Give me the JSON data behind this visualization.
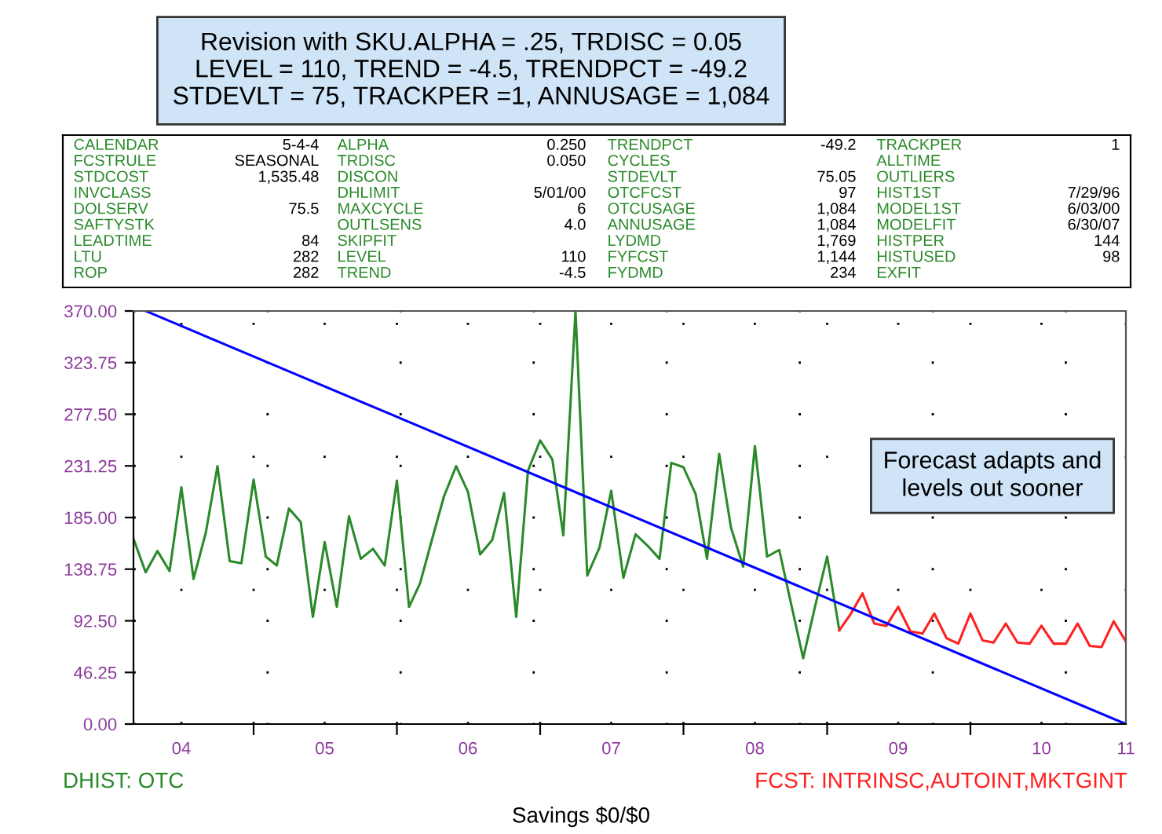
{
  "chart_data": [
    {
      "type": "other",
      "annotations": [
        "CALENDAR 5-4-4",
        "FCSTRULE SEASONAL",
        "STDCOST 1,535.48",
        "INVCLASS",
        "DOLSERV 75.5",
        "SAFTYSTK",
        "LEADTIME 84",
        "LTU 282",
        "ROP 282",
        "ALPHA 0.250",
        "TRDISC 0.050",
        "DISCON",
        "DHLIMIT 5/01/00",
        "MAXCYCLE 6",
        "OUTLSENS 4.0",
        "SKIPFIT",
        "LEVEL 110",
        "TREND -4.5",
        "TRENDPCT -49.2",
        "CYCLES",
        "STDEVLT 75.05",
        "OTCFCST 97",
        "OTCUSAGE 1,084",
        "ANNUSAGE 1,084",
        "LYDMD 1,769",
        "FYFCST 1,144",
        "FYDMD 234",
        "TRACKPER 1",
        "ALLTIME",
        "OUTLIERS",
        "HIST1ST 7/29/96",
        "MODEL1ST 6/03/00",
        "MODELFIT 6/30/07",
        "HISTPER 144",
        "HISTUSED 98",
        "EXFIT"
      ]
    },
    {
      "type": "line",
      "xlabel": "Savings $0/$0",
      "annotations": [
        "Revision with SKU.ALPHA = .25, TRDISC = 0.05\nLEVEL = 110, TREND = -4.5, TRENDPCT = -49.2\nSTDEVLT = 75, TRACKPER =1, ANNUSAGE = 1,084",
        "Forecast adapts and\nlevels out sooner"
      ],
      "xlim": [
        "2004-03",
        "2011-02"
      ],
      "xticks": [
        {
          "value": "2004-07",
          "label": "04"
        },
        {
          "value": "2005-07",
          "label": "05"
        },
        {
          "value": "2006-07",
          "label": "06"
        },
        {
          "value": "2007-07",
          "label": "07"
        },
        {
          "value": "2008-07",
          "label": "08"
        },
        {
          "value": "2009-07",
          "label": "09"
        },
        {
          "value": "2010-07",
          "label": "10"
        },
        {
          "value": "2011-02",
          "label": "11"
        },
        {
          "value": "2005-01",
          "label": null
        },
        {
          "value": "2006-01",
          "label": null
        },
        {
          "value": "2007-01",
          "label": null
        },
        {
          "value": "2008-01",
          "label": null
        },
        {
          "value": "2009-01",
          "label": null
        },
        {
          "value": "2010-01",
          "label": null
        }
      ],
      "ylim": [
        0,
        370
      ],
      "yticks": [
        {
          "value": 0,
          "label": "0.00"
        },
        {
          "value": 46.25,
          "label": "46.25"
        },
        {
          "value": 92.5,
          "label": "92.50"
        },
        {
          "value": 138.75,
          "label": "138.75"
        },
        {
          "value": 185,
          "label": "185.00"
        },
        {
          "value": 231.25,
          "label": "231.25"
        },
        {
          "value": 277.5,
          "label": "277.50"
        },
        {
          "value": 323.75,
          "label": "323.75"
        },
        {
          "value": 370,
          "label": "370.00"
        }
      ],
      "grid": true,
      "series": [
        {
          "name": "DHIST: OTC",
          "color": "#2a8a2a",
          "x": [
            "2004-03",
            "2004-04",
            "2004-05",
            "2004-06",
            "2004-07",
            "2004-08",
            "2004-09",
            "2004-10",
            "2004-11",
            "2004-12",
            "2005-01",
            "2005-02",
            "2005-03",
            "2005-04",
            "2005-05",
            "2005-06",
            "2005-07",
            "2005-08",
            "2005-09",
            "2005-10",
            "2005-11",
            "2005-12",
            "2006-01",
            "2006-02",
            "2006-03",
            "2006-04",
            "2006-05",
            "2006-06",
            "2006-07",
            "2006-08",
            "2006-09",
            "2006-10",
            "2006-11",
            "2006-12",
            "2007-01",
            "2007-02",
            "2007-03",
            "2007-04",
            "2007-05",
            "2007-06",
            "2007-07",
            "2007-08",
            "2007-09",
            "2007-10",
            "2007-11",
            "2007-12",
            "2008-01",
            "2008-02",
            "2008-03",
            "2008-04",
            "2008-05",
            "2008-06",
            "2008-07",
            "2008-08",
            "2008-09",
            "2008-10",
            "2008-11",
            "2008-12",
            "2009-01",
            "2009-02"
          ],
          "values": [
            166,
            136,
            155,
            137,
            212,
            130,
            171,
            231,
            146,
            144,
            219,
            150,
            142,
            193,
            181,
            96,
            163,
            105,
            186,
            148,
            157,
            142,
            218,
            105,
            126,
            166,
            204,
            231,
            208,
            152,
            165,
            207,
            96,
            227,
            254,
            237,
            169,
            370,
            133,
            158,
            209,
            131,
            170,
            160,
            148,
            234,
            230,
            206,
            148,
            242,
            176,
            141,
            249,
            150,
            156,
            108,
            59,
            105,
            150,
            84
          ]
        },
        {
          "name": "FCST: INTRINSC,AUTOINT,MKTGINT",
          "color": "#ff2020",
          "x": [
            "2009-02",
            "2009-03",
            "2009-04",
            "2009-05",
            "2009-06",
            "2009-07",
            "2009-08",
            "2009-09",
            "2009-10",
            "2009-11",
            "2009-12",
            "2010-01",
            "2010-02",
            "2010-03",
            "2010-04",
            "2010-05",
            "2010-06",
            "2010-07",
            "2010-08",
            "2010-09",
            "2010-10",
            "2010-11",
            "2010-12",
            "2011-01",
            "2011-02"
          ],
          "values": [
            84,
            98,
            117,
            90,
            88,
            105,
            83,
            81,
            99,
            77,
            72,
            99,
            75,
            73,
            90,
            73,
            72,
            88,
            72,
            72,
            90,
            70,
            69,
            92,
            74
          ]
        },
        {
          "color": "#0000ff",
          "x": [
            "2004-04",
            "2011-02"
          ],
          "values": [
            370,
            0
          ]
        }
      ]
    }
  ]
}
